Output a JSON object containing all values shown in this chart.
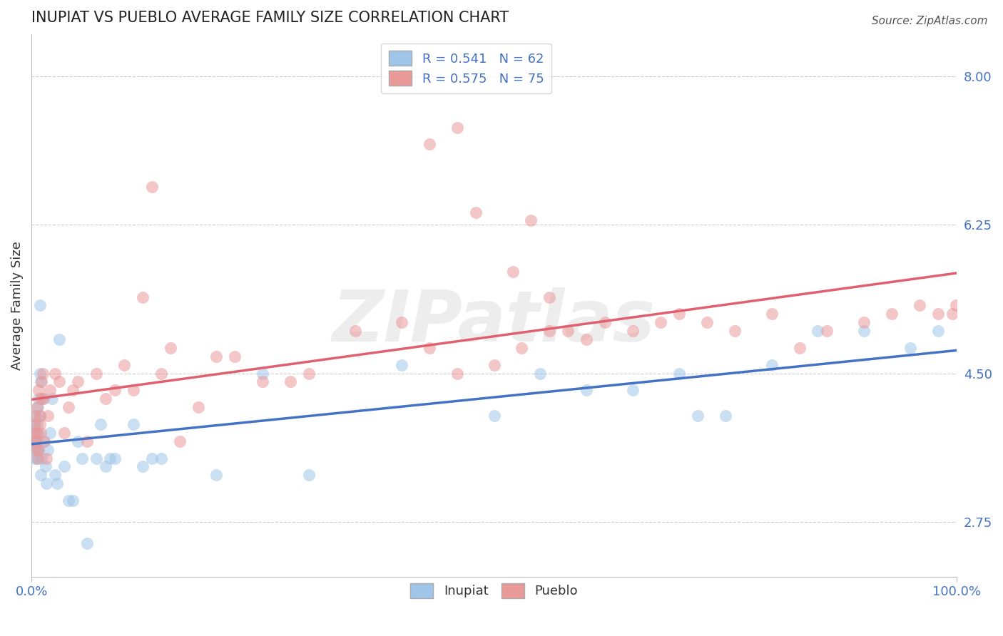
{
  "title": "INUPIAT VS PUEBLO AVERAGE FAMILY SIZE CORRELATION CHART",
  "source": "Source: ZipAtlas.com",
  "ylabel": "Average Family Size",
  "xlim": [
    0,
    1
  ],
  "ylim": [
    2.1,
    8.5
  ],
  "yticks": [
    2.75,
    4.5,
    6.25,
    8.0
  ],
  "xtick_labels": [
    "0.0%",
    "100.0%"
  ],
  "xticks": [
    0,
    1
  ],
  "R_inupiat": 0.541,
  "N_inupiat": 62,
  "R_pueblo": 0.575,
  "N_pueblo": 75,
  "inupiat_color": "#9fc5e8",
  "pueblo_color": "#ea9999",
  "inupiat_line_color": "#4472c4",
  "pueblo_line_color": "#e06070",
  "legend_text_color": "#4472c4",
  "ytick_color": "#4472c4",
  "xtick_color": "#4472c4",
  "inupiat_x": [
    0.002,
    0.003,
    0.003,
    0.004,
    0.004,
    0.004,
    0.005,
    0.005,
    0.005,
    0.006,
    0.006,
    0.007,
    0.007,
    0.008,
    0.008,
    0.009,
    0.009,
    0.009,
    0.01,
    0.01,
    0.011,
    0.012,
    0.013,
    0.015,
    0.016,
    0.018,
    0.02,
    0.022,
    0.025,
    0.028,
    0.03,
    0.035,
    0.04,
    0.045,
    0.05,
    0.055,
    0.06,
    0.07,
    0.075,
    0.08,
    0.085,
    0.09,
    0.11,
    0.12,
    0.13,
    0.14,
    0.2,
    0.25,
    0.3,
    0.4,
    0.5,
    0.55,
    0.6,
    0.65,
    0.7,
    0.72,
    0.75,
    0.8,
    0.85,
    0.9,
    0.95,
    0.98
  ],
  "inupiat_y": [
    3.8,
    3.6,
    3.9,
    3.7,
    3.5,
    4.0,
    3.8,
    3.5,
    3.7,
    3.6,
    3.9,
    4.1,
    3.8,
    3.6,
    4.2,
    4.0,
    5.3,
    4.5,
    4.4,
    3.3,
    3.5,
    4.2,
    3.7,
    3.4,
    3.2,
    3.6,
    3.8,
    4.2,
    3.3,
    3.2,
    4.9,
    3.4,
    3.0,
    3.0,
    3.7,
    3.5,
    2.5,
    3.5,
    3.9,
    3.4,
    3.5,
    3.5,
    3.9,
    3.4,
    3.5,
    3.5,
    3.3,
    4.5,
    3.3,
    4.6,
    4.0,
    4.5,
    4.3,
    4.3,
    4.5,
    4.0,
    4.0,
    4.6,
    5.0,
    5.0,
    4.8,
    5.0
  ],
  "pueblo_x": [
    0.002,
    0.003,
    0.003,
    0.004,
    0.005,
    0.005,
    0.006,
    0.006,
    0.007,
    0.008,
    0.008,
    0.009,
    0.009,
    0.01,
    0.01,
    0.011,
    0.012,
    0.013,
    0.014,
    0.016,
    0.018,
    0.02,
    0.025,
    0.03,
    0.035,
    0.04,
    0.045,
    0.05,
    0.06,
    0.07,
    0.08,
    0.09,
    0.1,
    0.11,
    0.12,
    0.13,
    0.14,
    0.15,
    0.16,
    0.18,
    0.2,
    0.22,
    0.25,
    0.28,
    0.3,
    0.35,
    0.4,
    0.43,
    0.46,
    0.5,
    0.53,
    0.56,
    0.58,
    0.6,
    0.62,
    0.65,
    0.68,
    0.7,
    0.73,
    0.76,
    0.8,
    0.83,
    0.86,
    0.9,
    0.93,
    0.96,
    0.98,
    0.995,
    0.999,
    0.43,
    0.46,
    0.48,
    0.52,
    0.54,
    0.56
  ],
  "pueblo_y": [
    3.8,
    3.7,
    3.9,
    4.0,
    3.6,
    3.7,
    4.1,
    3.8,
    3.5,
    4.3,
    3.6,
    4.0,
    3.9,
    3.8,
    4.2,
    4.4,
    4.5,
    4.2,
    3.7,
    3.5,
    4.0,
    4.3,
    4.5,
    4.4,
    3.8,
    4.1,
    4.3,
    4.4,
    3.7,
    4.5,
    4.2,
    4.3,
    4.6,
    4.3,
    5.4,
    6.7,
    4.5,
    4.8,
    3.7,
    4.1,
    4.7,
    4.7,
    4.4,
    4.4,
    4.5,
    5.0,
    5.1,
    4.8,
    4.5,
    4.6,
    4.8,
    5.0,
    5.0,
    4.9,
    5.1,
    5.0,
    5.1,
    5.2,
    5.1,
    5.0,
    5.2,
    4.8,
    5.0,
    5.1,
    5.2,
    5.3,
    5.2,
    5.2,
    5.3,
    7.2,
    7.4,
    6.4,
    5.7,
    6.3,
    5.4
  ]
}
